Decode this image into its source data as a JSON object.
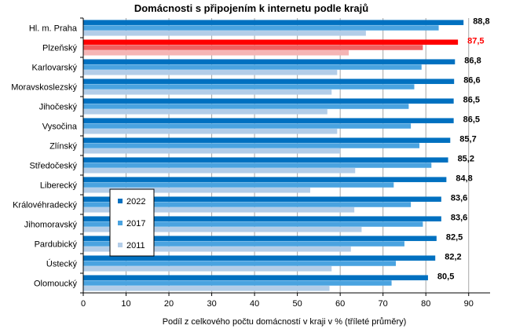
{
  "chart_data": {
    "type": "bar",
    "orientation": "horizontal",
    "title": "Domácnosti  s připojením k internetu podle krajů",
    "xlabel": "Podíl  z celkového počtu domácností v kraji v % (tříleté průměry)",
    "ylabel": "",
    "xlim": [
      0,
      95
    ],
    "xticks": [
      0,
      10,
      20,
      30,
      40,
      50,
      60,
      70,
      80,
      90
    ],
    "grid": "vertical",
    "legend_position": "center-left",
    "categories": [
      "Hl. m. Praha",
      "Plzeňský",
      "Karlovarský",
      "Moravskoslezský",
      "Jihočeský",
      "Vysočina",
      "Zlínský",
      "Středočeský",
      "Liberecký",
      "Královéhradecký",
      "Jihomoravský",
      "Pardubický",
      "Ústecký",
      "Olomoucký"
    ],
    "highlight_category": "Plzeňský",
    "series": [
      {
        "name": "2022",
        "color": "#0070C0",
        "highlight_color": "#FF0000",
        "values": [
          88.8,
          87.5,
          86.8,
          86.6,
          86.5,
          86.5,
          85.7,
          85.2,
          84.8,
          83.6,
          83.6,
          82.5,
          82.2,
          80.5
        ]
      },
      {
        "name": "2017",
        "color": "#4AA3E0",
        "highlight_color": "#F06060",
        "values": [
          83.0,
          79.3,
          79.0,
          77.3,
          76.0,
          76.5,
          78.5,
          81.3,
          72.5,
          76.5,
          79.3,
          75.0,
          73.0,
          72.0
        ]
      },
      {
        "name": "2011",
        "color": "#B3CDE8",
        "highlight_color": "#F5B5B5",
        "values": [
          66.0,
          62.0,
          59.3,
          58.0,
          57.0,
          59.3,
          60.0,
          63.5,
          53.0,
          63.3,
          65.0,
          62.5,
          58.0,
          57.5
        ]
      }
    ],
    "data_labels": [
      "88,8",
      "87,5",
      "86,8",
      "86,6",
      "86,5",
      "86,5",
      "85,7",
      "85,2",
      "84,8",
      "83,6",
      "83,6",
      "82,5",
      "82,2",
      "80,5"
    ],
    "data_label_highlight_color": "#FF0000",
    "tick_labels": [
      "0",
      "10",
      "20",
      "30",
      "40",
      "50",
      "60",
      "70",
      "80",
      "90"
    ]
  }
}
